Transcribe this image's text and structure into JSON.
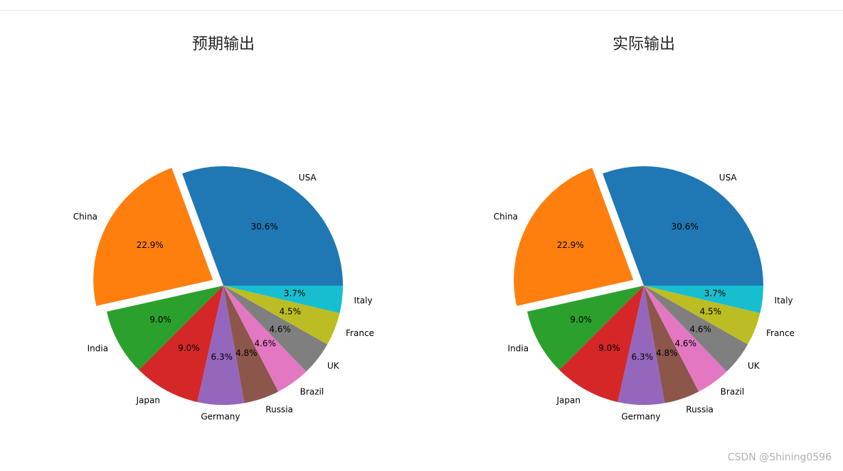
{
  "watermark": "CSDN @Shining0596",
  "chart_data": [
    {
      "type": "pie",
      "title": "预期输出",
      "categories": [
        "USA",
        "China",
        "India",
        "Japan",
        "Germany",
        "Russia",
        "Brazil",
        "UK",
        "France",
        "Italy"
      ],
      "values": [
        30.6,
        22.9,
        9.0,
        9.0,
        6.3,
        4.8,
        4.6,
        4.6,
        4.5,
        3.7
      ],
      "value_labels": [
        "30.6%",
        "22.9%",
        "9.0%",
        "9.0%",
        "6.3%",
        "4.8%",
        "4.6%",
        "4.6%",
        "4.5%",
        "3.7%"
      ],
      "colors": [
        "#1f77b4",
        "#ff7f0e",
        "#2ca02c",
        "#d62728",
        "#9467bd",
        "#8c564b",
        "#e377c2",
        "#7f7f7f",
        "#bcbd22",
        "#17becf"
      ],
      "exploded": [
        "China"
      ],
      "start_angle": 0,
      "direction": "counterclockwise"
    },
    {
      "type": "pie",
      "title": "实际输出",
      "categories": [
        "USA",
        "China",
        "India",
        "Japan",
        "Germany",
        "Russia",
        "Brazil",
        "UK",
        "France",
        "Italy"
      ],
      "values": [
        30.6,
        22.9,
        9.0,
        9.0,
        6.3,
        4.8,
        4.6,
        4.6,
        4.5,
        3.7
      ],
      "value_labels": [
        "30.6%",
        "22.9%",
        "9.0%",
        "9.0%",
        "6.3%",
        "4.8%",
        "4.6%",
        "4.6%",
        "4.5%",
        "3.7%"
      ],
      "colors": [
        "#1f77b4",
        "#ff7f0e",
        "#2ca02c",
        "#d62728",
        "#9467bd",
        "#8c564b",
        "#e377c2",
        "#7f7f7f",
        "#bcbd22",
        "#17becf"
      ],
      "exploded": [
        "China"
      ],
      "start_angle": 0,
      "direction": "counterclockwise"
    }
  ]
}
